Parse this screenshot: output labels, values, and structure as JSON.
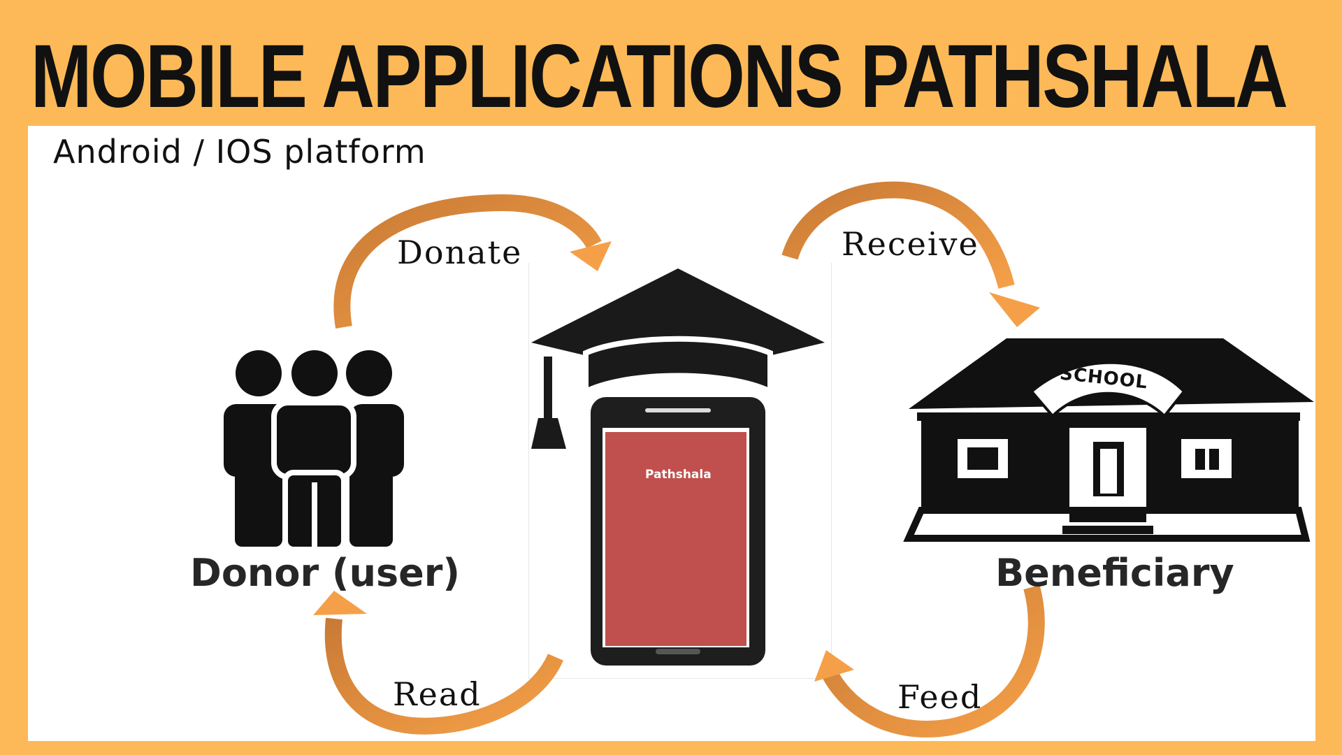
{
  "title": "MOBILE APPLICATIONS PATHSHALA",
  "subtitle": "Android / IOS platform",
  "labels": {
    "donate": "Donate",
    "receive": "Receive",
    "read": "Read",
    "feed": "Feed",
    "donor": "Donor (user)",
    "beneficiary": "Beneficiary",
    "app_screen": "Pathshala",
    "school_sign": "SCHOOL"
  },
  "icons": {
    "donor": "people-group-icon",
    "app": "graduation-cap-phone-icon",
    "beneficiary": "school-building-icon"
  },
  "colors": {
    "background": "#fdb957",
    "arrow_light": "#f5a048",
    "arrow_dark": "#c97a35",
    "screen": "#c0504d",
    "icon": "#111111"
  }
}
